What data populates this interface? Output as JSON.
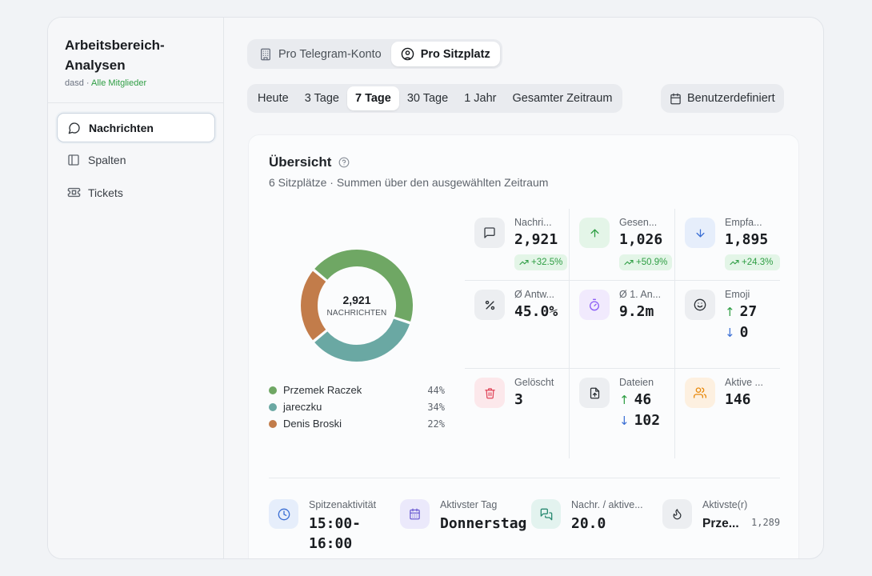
{
  "sidebar": {
    "title": "Arbeitsbereich-Analysen",
    "workspace": "dasd",
    "separator": " · ",
    "scope": "Alle Mitglieder",
    "items": [
      {
        "label": "Nachrichten",
        "icon": "message-circle-icon"
      },
      {
        "label": "Spalten",
        "icon": "columns-icon"
      },
      {
        "label": "Tickets",
        "icon": "ticket-icon"
      }
    ]
  },
  "view_toggle": {
    "options": [
      {
        "label": "Pro Telegram-Konto",
        "icon": "building-icon",
        "selected": false
      },
      {
        "label": "Pro Sitzplatz",
        "icon": "user-circle-icon",
        "selected": true
      }
    ]
  },
  "time_ranges": {
    "options": [
      "Heute",
      "3 Tage",
      "7 Tage",
      "30 Tage",
      "1 Jahr",
      "Gesamter Zeitraum"
    ],
    "selected": "7 Tage",
    "custom_label": "Benutzerdefiniert"
  },
  "overview": {
    "title": "Übersicht",
    "subtitle": "6 Sitzplätze · Summen über den ausgewählten Zeitraum",
    "donut": {
      "center_value": "2,921",
      "center_label": "NACHRICHTEN"
    },
    "metrics": [
      {
        "label": "Nachri...",
        "value": "2,921",
        "change": "+32.5%",
        "icon": "message-square-icon",
        "color": "#6b7280"
      },
      {
        "label": "Gesen...",
        "value": "1,026",
        "change": "+50.9%",
        "icon": "arrow-up-icon",
        "color": "#2f9e44"
      },
      {
        "label": "Empfa...",
        "value": "1,895",
        "change": "+24.3%",
        "icon": "arrow-down-icon",
        "color": "#3b6fd4"
      },
      {
        "label": "Ø Antw...",
        "value": "45.0%",
        "icon": "percent-icon",
        "color": "#3a3f46"
      },
      {
        "label": "Ø 1. An...",
        "value": "9.2m",
        "icon": "timer-icon",
        "color": "#8b5cf6"
      },
      {
        "label": "Emoji",
        "up": "27",
        "down": "0",
        "icon": "smile-icon",
        "color": "#3a3f46"
      },
      {
        "label": "Gelöscht",
        "value": "3",
        "icon": "trash-icon",
        "color": "#e0465a"
      },
      {
        "label": "Dateien",
        "up": "46",
        "down": "102",
        "icon": "file-upload-icon",
        "color": "#3a3f46"
      },
      {
        "label": "Aktive ...",
        "value": "146",
        "icon": "users-icon",
        "color": "#e8890c"
      }
    ],
    "bottom": [
      {
        "label": "Spitzenaktivität",
        "value": "15:00-\n16:00",
        "icon": "clock-icon"
      },
      {
        "label": "Aktivster Tag",
        "value": "Donnerstag",
        "icon": "calendar-icon"
      },
      {
        "label": "Nachr. / aktive...",
        "value": "20.0",
        "icon": "messages-icon"
      },
      {
        "label": "Aktivste(r)",
        "value": "Prze...",
        "extra": "1,289",
        "icon": "flame-icon"
      }
    ]
  },
  "chart_data": {
    "type": "pie",
    "categories": [
      "Przemek Raczek",
      "jareczku",
      "Denis Broski"
    ],
    "values": [
      44,
      34,
      22
    ],
    "labels": [
      "44%",
      "34%",
      "22%"
    ],
    "colors": [
      "#6fa764",
      "#6aa8a3",
      "#c27c4a"
    ],
    "donut": true
  }
}
